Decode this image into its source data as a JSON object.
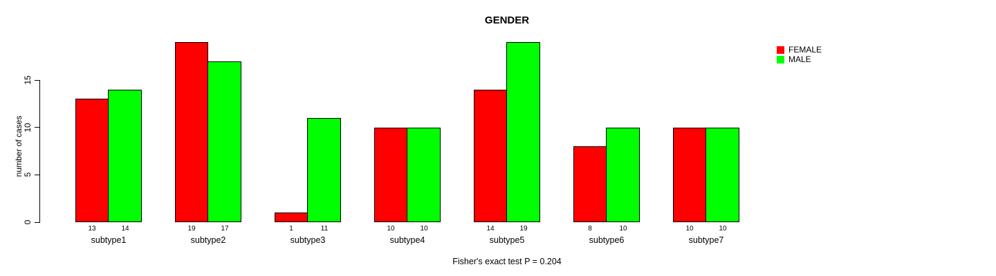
{
  "chart_data": {
    "type": "bar",
    "title": "GENDER",
    "ylabel": "number of cases",
    "xlabel": "",
    "categories": [
      "subtype1",
      "subtype2",
      "subtype3",
      "subtype4",
      "subtype5",
      "subtype6",
      "subtype7"
    ],
    "series": [
      {
        "name": "FEMALE",
        "color": "#ff0000",
        "values": [
          13,
          19,
          1,
          10,
          14,
          8,
          10
        ]
      },
      {
        "name": "MALE",
        "color": "#00ff00",
        "values": [
          14,
          17,
          11,
          10,
          19,
          10,
          10
        ]
      }
    ],
    "ylim": [
      0,
      19
    ],
    "yticks": [
      0,
      5,
      10,
      15
    ],
    "bar_value_labels": true,
    "grid": false,
    "legend_position": "top-right",
    "note": "Fisher's exact test P = 0.204"
  },
  "colors": {
    "background": "#ffffff",
    "axis": "#000000",
    "text": "#000000",
    "female_bar": "#ff0000",
    "male_bar": "#00ff00"
  }
}
